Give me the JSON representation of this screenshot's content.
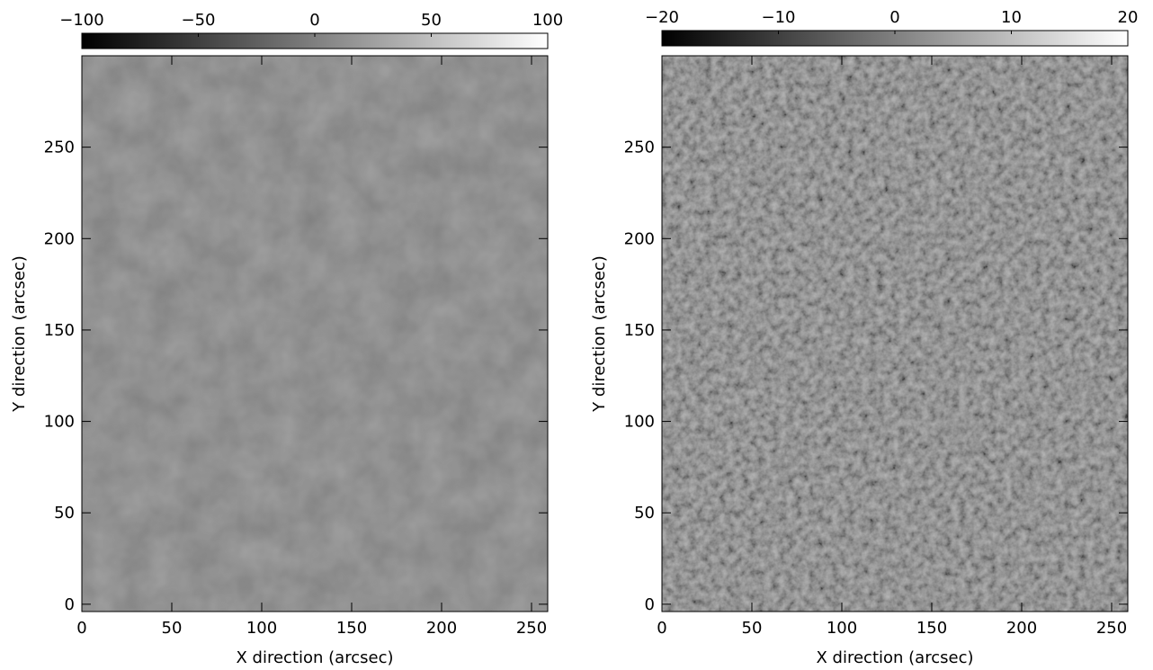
{
  "chart_data": [
    {
      "type": "image",
      "xlabel": "X direction (arcsec)",
      "ylabel": "Y direction (arcsec)",
      "xlim": [
        0,
        259
      ],
      "ylim": [
        -4,
        300
      ],
      "xticks": [
        0,
        50,
        100,
        150,
        200,
        250
      ],
      "yticks": [
        0,
        50,
        100,
        150,
        200,
        250
      ],
      "colorbar": {
        "lim": [
          -100,
          100
        ],
        "ticks": [
          {
            "value": -100,
            "label": "−100"
          },
          {
            "value": -50,
            "label": "−50"
          },
          0,
          50,
          100
        ]
      }
    },
    {
      "type": "image",
      "xlabel": "X direction (arcsec)",
      "ylabel": "Y direction (arcsec)",
      "xlim": [
        0,
        259
      ],
      "ylim": [
        -4,
        300
      ],
      "xticks": [
        0,
        50,
        100,
        150,
        200,
        250
      ],
      "yticks": [
        0,
        50,
        100,
        150,
        200,
        250
      ],
      "colorbar": {
        "lim": [
          -20,
          20
        ],
        "ticks": [
          {
            "value": -20,
            "label": "−20"
          },
          {
            "value": -10,
            "label": "−10"
          },
          0,
          10,
          20
        ]
      }
    }
  ]
}
